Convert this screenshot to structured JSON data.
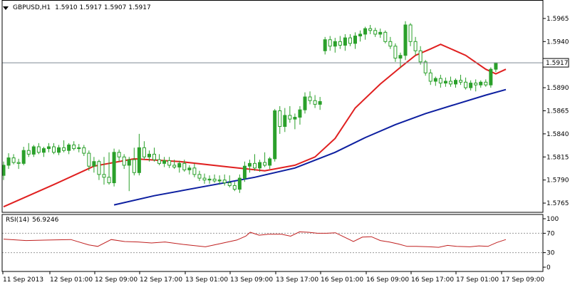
{
  "header": {
    "symbol": "GBPUSD,H1",
    "ohlc": "1.5910 1.5917 1.5907 1.5917"
  },
  "rsi": {
    "label": "RSI(14)",
    "value": "56.9246",
    "levels": [
      70,
      30
    ],
    "ticks": [
      {
        "label": "100",
        "v": 100
      },
      {
        "label": "70",
        "v": 70
      },
      {
        "label": "30",
        "v": 30
      },
      {
        "label": "0",
        "v": 0
      }
    ]
  },
  "current_price": {
    "label": "1.5917",
    "value": 1.5917
  },
  "colors": {
    "background": "#ffffff",
    "candle": "#2aa02a",
    "short_ma": "#e02020",
    "long_ma": "#0d1fa0",
    "rsi_line": "#c02020",
    "grid": "#9a9a9a"
  },
  "chart_data": [
    {
      "type": "candlestick",
      "title": "GBPUSD,H1",
      "ylim": [
        1.5755,
        1.5985
      ],
      "y_ticks": [
        {
          "label": "1.5965",
          "v": 1.5965
        },
        {
          "label": "1.5940",
          "v": 1.594
        },
        {
          "label": "1.5890",
          "v": 1.589
        },
        {
          "label": "1.5865",
          "v": 1.5865
        },
        {
          "label": "1.5840",
          "v": 1.584
        },
        {
          "label": "1.5815",
          "v": 1.5815
        },
        {
          "label": "1.5790",
          "v": 1.579
        },
        {
          "label": "1.5765",
          "v": 1.5765
        }
      ],
      "x_ticks": [
        {
          "label": "11 Sep 2013",
          "bar": 0
        },
        {
          "label": "12 Sep 01:00",
          "bar": 15
        },
        {
          "label": "12 Sep 09:00",
          "bar": 23
        },
        {
          "label": "12 Sep 17:00",
          "bar": 31
        },
        {
          "label": "13 Sep 01:00",
          "bar": 39
        },
        {
          "label": "13 Sep 09:00",
          "bar": 47
        },
        {
          "label": "13 Sep 17:00",
          "bar": 55
        },
        {
          "label": "16 Sep 01:00",
          "bar": 63
        },
        {
          "label": "16 Sep 09:00",
          "bar": 71
        },
        {
          "label": "16 Sep 17:00",
          "bar": 79
        },
        {
          "label": "17 Sep 01:00",
          "bar": 87
        },
        {
          "label": "17 Sep 09:00",
          "bar": 95
        }
      ],
      "x_tick_pos": [
        0,
        66,
        129,
        192,
        256,
        319,
        383,
        446,
        510,
        573,
        636,
        700
      ],
      "candles": [
        [
          1.5795,
          1.581,
          1.579,
          1.5806
        ],
        [
          1.5806,
          1.5819,
          1.5802,
          1.5814
        ],
        [
          1.5814,
          1.5818,
          1.5807,
          1.5809
        ],
        [
          1.5809,
          1.5813,
          1.5802,
          1.5808
        ],
        [
          1.5808,
          1.5826,
          1.5806,
          1.5822
        ],
        [
          1.5822,
          1.583,
          1.5815,
          1.5818
        ],
        [
          1.5818,
          1.5828,
          1.5815,
          1.5826
        ],
        [
          1.5826,
          1.583,
          1.5818,
          1.582
        ],
        [
          1.582,
          1.5826,
          1.5815,
          1.5824
        ],
        [
          1.5824,
          1.583,
          1.582,
          1.5826
        ],
        [
          1.5826,
          1.583,
          1.5818,
          1.582
        ],
        [
          1.582,
          1.5828,
          1.5817,
          1.5825
        ],
        [
          1.5825,
          1.5833,
          1.582,
          1.5822
        ],
        [
          1.5822,
          1.583,
          1.5818,
          1.5828
        ],
        [
          1.5828,
          1.5832,
          1.5822,
          1.5824
        ],
        [
          1.5824,
          1.5829,
          1.582,
          1.5825
        ],
        [
          1.5825,
          1.5828,
          1.5816,
          1.5819
        ],
        [
          1.5819,
          1.5822,
          1.58,
          1.5805
        ],
        [
          1.5805,
          1.5815,
          1.5798,
          1.581
        ],
        [
          1.581,
          1.5812,
          1.579,
          1.5796
        ],
        [
          1.5796,
          1.5815,
          1.5785,
          1.5793
        ],
        [
          1.5793,
          1.582,
          1.5785,
          1.5787
        ],
        [
          1.5787,
          1.5824,
          1.5783,
          1.582
        ],
        [
          1.582,
          1.5823,
          1.581,
          1.5815
        ],
        [
          1.5815,
          1.5818,
          1.5802,
          1.5806
        ],
        [
          1.5806,
          1.5815,
          1.5778,
          1.5812
        ],
        [
          1.5812,
          1.5825,
          1.5795,
          1.5798
        ],
        [
          1.5798,
          1.584,
          1.5795,
          1.5825
        ],
        [
          1.5825,
          1.5832,
          1.5812,
          1.5815
        ],
        [
          1.5815,
          1.5822,
          1.581,
          1.5818
        ],
        [
          1.5818,
          1.5825,
          1.581,
          1.5812
        ],
        [
          1.5812,
          1.5818,
          1.5806,
          1.5808
        ],
        [
          1.5808,
          1.5815,
          1.5804,
          1.5811
        ],
        [
          1.5811,
          1.5815,
          1.5803,
          1.5806
        ],
        [
          1.5806,
          1.5812,
          1.5802,
          1.5804
        ],
        [
          1.5804,
          1.5811,
          1.5798,
          1.5808
        ],
        [
          1.5808,
          1.5812,
          1.5799,
          1.5801
        ],
        [
          1.5801,
          1.5806,
          1.5796,
          1.5803
        ],
        [
          1.5803,
          1.5808,
          1.5793,
          1.5796
        ],
        [
          1.5796,
          1.58,
          1.5789,
          1.5792
        ],
        [
          1.5792,
          1.5797,
          1.5786,
          1.579
        ],
        [
          1.579,
          1.5795,
          1.5786,
          1.5791
        ],
        [
          1.5791,
          1.5796,
          1.5787,
          1.5789
        ],
        [
          1.5789,
          1.5795,
          1.5785,
          1.579
        ],
        [
          1.579,
          1.5796,
          1.5784,
          1.5787
        ],
        [
          1.5787,
          1.5795,
          1.5782,
          1.5784
        ],
        [
          1.5784,
          1.5788,
          1.5778,
          1.578
        ],
        [
          1.578,
          1.5796,
          1.5776,
          1.5792
        ],
        [
          1.5792,
          1.581,
          1.5788,
          1.5805
        ],
        [
          1.5805,
          1.5812,
          1.5798,
          1.5808
        ],
        [
          1.5808,
          1.5818,
          1.58,
          1.5803
        ],
        [
          1.5803,
          1.5812,
          1.5799,
          1.5809
        ],
        [
          1.5809,
          1.582,
          1.5804,
          1.5806
        ],
        [
          1.5806,
          1.5815,
          1.5802,
          1.5813
        ],
        [
          1.5813,
          1.5867,
          1.581,
          1.5865
        ],
        [
          1.5865,
          1.587,
          1.584,
          1.5848
        ],
        [
          1.5848,
          1.5868,
          1.5842,
          1.586
        ],
        [
          1.586,
          1.587,
          1.5852,
          1.5856
        ],
        [
          1.5856,
          1.5862,
          1.5845,
          1.5858
        ],
        [
          1.5858,
          1.587,
          1.585,
          1.5866
        ],
        [
          1.5866,
          1.5885,
          1.5862,
          1.588
        ],
        [
          1.588,
          1.5886,
          1.5872,
          1.5876
        ],
        [
          1.5876,
          1.5882,
          1.5868,
          1.5872
        ],
        [
          1.5872,
          1.588,
          1.5866,
          1.5875
        ],
        [
          1.593,
          1.5945,
          1.5926,
          1.5942
        ],
        [
          1.5942,
          1.5946,
          1.593,
          1.5935
        ],
        [
          1.5935,
          1.5944,
          1.5928,
          1.594
        ],
        [
          1.594,
          1.5946,
          1.5932,
          1.5936
        ],
        [
          1.5936,
          1.5948,
          1.593,
          1.5944
        ],
        [
          1.5944,
          1.5948,
          1.5935,
          1.5938
        ],
        [
          1.5938,
          1.595,
          1.5932,
          1.5946
        ],
        [
          1.5946,
          1.5952,
          1.594,
          1.5948
        ],
        [
          1.5948,
          1.5956,
          1.5942,
          1.5954
        ],
        [
          1.5954,
          1.5958,
          1.5948,
          1.5952
        ],
        [
          1.5952,
          1.5955,
          1.5945,
          1.5948
        ],
        [
          1.5948,
          1.5954,
          1.5944,
          1.595
        ],
        [
          1.595,
          1.5952,
          1.5938,
          1.594
        ],
        [
          1.594,
          1.5945,
          1.5932,
          1.5935
        ],
        [
          1.5935,
          1.5938,
          1.5918,
          1.5922
        ],
        [
          1.5922,
          1.5928,
          1.5912,
          1.5925
        ],
        [
          1.5925,
          1.5962,
          1.592,
          1.5958
        ],
        [
          1.5958,
          1.596,
          1.5935,
          1.594
        ],
        [
          1.594,
          1.5945,
          1.5925,
          1.593
        ],
        [
          1.593,
          1.5935,
          1.5915,
          1.5918
        ],
        [
          1.5918,
          1.592,
          1.5903,
          1.5906
        ],
        [
          1.5906,
          1.591,
          1.5893,
          1.5897
        ],
        [
          1.5897,
          1.5902,
          1.5892,
          1.59
        ],
        [
          1.59,
          1.5904,
          1.589,
          1.5895
        ],
        [
          1.5895,
          1.5901,
          1.5891,
          1.5897
        ],
        [
          1.5897,
          1.5902,
          1.5891,
          1.5894
        ],
        [
          1.5894,
          1.59,
          1.589,
          1.5898
        ],
        [
          1.5898,
          1.5904,
          1.5893,
          1.5896
        ],
        [
          1.5896,
          1.5901,
          1.5888,
          1.589
        ],
        [
          1.589,
          1.5898,
          1.5887,
          1.5895
        ],
        [
          1.5895,
          1.5899,
          1.5886,
          1.5893
        ],
        [
          1.5893,
          1.5898,
          1.589,
          1.5896
        ],
        [
          1.5896,
          1.5899,
          1.5891,
          1.5893
        ],
        [
          1.5893,
          1.5912,
          1.589,
          1.591
        ],
        [
          1.591,
          1.5917,
          1.5907,
          1.5917
        ]
      ],
      "ma_short": [
        [
          0,
          1.5761
        ],
        [
          10,
          1.5785
        ],
        [
          18,
          1.5805
        ],
        [
          26,
          1.5813
        ],
        [
          35,
          1.581
        ],
        [
          45,
          1.5804
        ],
        [
          52,
          1.58
        ],
        [
          58,
          1.5806
        ],
        [
          62,
          1.5815
        ],
        [
          66,
          1.5835
        ],
        [
          70,
          1.5868
        ],
        [
          75,
          1.5894
        ],
        [
          79,
          1.5912
        ],
        [
          82,
          1.5925
        ],
        [
          85,
          1.5932
        ],
        [
          87,
          1.5937
        ],
        [
          92,
          1.5925
        ],
        [
          96,
          1.591
        ],
        [
          98,
          1.5905
        ],
        [
          100,
          1.591
        ]
      ],
      "ma_long": [
        [
          22,
          1.5763
        ],
        [
          30,
          1.5773
        ],
        [
          40,
          1.5783
        ],
        [
          50,
          1.5793
        ],
        [
          58,
          1.5803
        ],
        [
          66,
          1.582
        ],
        [
          72,
          1.5836
        ],
        [
          78,
          1.585
        ],
        [
          84,
          1.5862
        ],
        [
          90,
          1.5872
        ],
        [
          96,
          1.5882
        ],
        [
          100,
          1.5888
        ]
      ],
      "rsi_values": [
        [
          0,
          58
        ],
        [
          5,
          55
        ],
        [
          10,
          56
        ],
        [
          15,
          57
        ],
        [
          19,
          46
        ],
        [
          21,
          43
        ],
        [
          24,
          57
        ],
        [
          27,
          53
        ],
        [
          30,
          52
        ],
        [
          33,
          50
        ],
        [
          36,
          52
        ],
        [
          40,
          47
        ],
        [
          45,
          42
        ],
        [
          48,
          48
        ],
        [
          52,
          56
        ],
        [
          54,
          64
        ],
        [
          55,
          72
        ],
        [
          57,
          66
        ],
        [
          59,
          68
        ],
        [
          62,
          68
        ],
        [
          64,
          64
        ],
        [
          66,
          73
        ],
        [
          68,
          72
        ],
        [
          70,
          70
        ],
        [
          72,
          70
        ],
        [
          74,
          71
        ],
        [
          76,
          62
        ],
        [
          78,
          53
        ],
        [
          80,
          62
        ],
        [
          82,
          63
        ],
        [
          84,
          55
        ],
        [
          86,
          52
        ],
        [
          88,
          48
        ],
        [
          90,
          43
        ],
        [
          92,
          43
        ],
        [
          95,
          42
        ],
        [
          97,
          41
        ],
        [
          99,
          45
        ],
        [
          101,
          43
        ],
        [
          104,
          42
        ],
        [
          106,
          44
        ],
        [
          108,
          43
        ],
        [
          110,
          51
        ],
        [
          112,
          57
        ]
      ]
    }
  ]
}
